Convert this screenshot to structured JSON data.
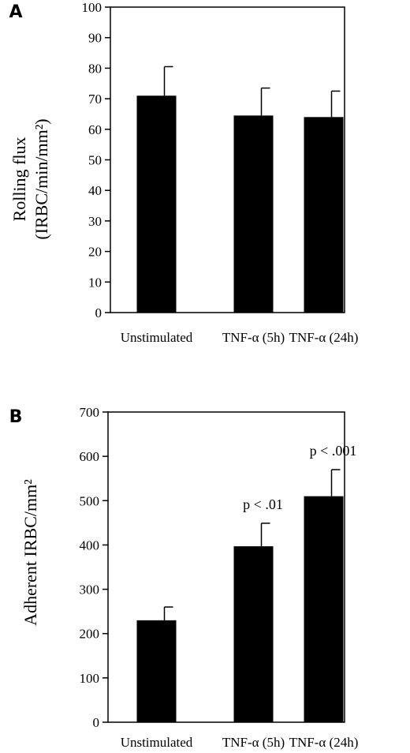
{
  "chart_data": [
    {
      "type": "bar",
      "panel": "A",
      "categories": [
        "Unstimulated",
        "TNF-α (5h)",
        "TNF-α (24h)"
      ],
      "values": [
        71,
        64.5,
        64
      ],
      "errors": [
        9.5,
        9,
        8.5
      ],
      "ylabel_lines": [
        "Rolling flux",
        "(IRBC/min/mm²)"
      ],
      "ylim": [
        0,
        100
      ],
      "yticks": [
        0,
        10,
        20,
        30,
        40,
        50,
        60,
        70,
        80,
        90,
        100
      ],
      "annotations": [
        "",
        "",
        ""
      ],
      "grid": false,
      "bar_color": "#000000"
    },
    {
      "type": "bar",
      "panel": "B",
      "categories": [
        "Unstimulated",
        "TNF-α (5h)",
        "TNF-α (24h)"
      ],
      "values": [
        230,
        397,
        510
      ],
      "errors": [
        30,
        52,
        60
      ],
      "ylabel_lines": [
        "Adherent IRBC/mm²"
      ],
      "ylim": [
        0,
        700
      ],
      "yticks": [
        0,
        100,
        200,
        300,
        400,
        500,
        600,
        700
      ],
      "annotations": [
        "",
        "p < .01",
        "p < .001"
      ],
      "grid": false,
      "bar_color": "#000000"
    }
  ]
}
